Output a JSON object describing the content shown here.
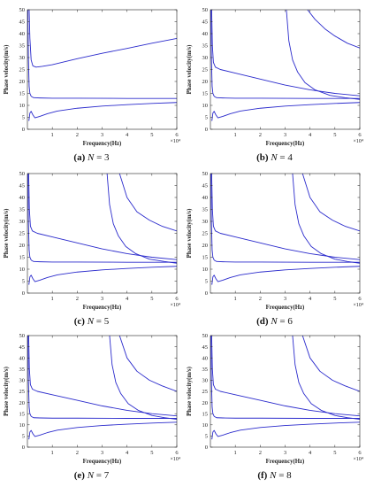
{
  "chart_data": [
    {
      "type": "line",
      "caption": {
        "letter": "(a)",
        "var": "N",
        "eq": " = 3"
      },
      "xlabel": "Frequency(Hz)",
      "ylabel": "Phase velocity(m/s)",
      "xexponent": "×10⁴",
      "xlim": [
        0,
        6
      ],
      "ylim": [
        0,
        50
      ],
      "xticks": [
        "1",
        "2",
        "3",
        "4",
        "5",
        "6"
      ],
      "yticks": [
        "0",
        "5",
        "10",
        "15",
        "20",
        "25",
        "30",
        "35",
        "40",
        "45",
        "50"
      ],
      "color": "#2b2bcc",
      "series": [
        {
          "x": [
            0.07,
            0.1,
            0.15,
            0.22,
            0.35,
            0.6,
            1.0,
            2.0,
            3.0,
            4.0,
            5.0,
            6.0
          ],
          "y": [
            50,
            38,
            29,
            26.5,
            26,
            26.3,
            27,
            29.5,
            31.8,
            33.8,
            36,
            38
          ]
        },
        {
          "x": [
            0.02,
            0.04,
            0.07,
            0.1,
            0.15,
            0.25,
            0.5,
            1.0,
            2.0,
            4.0,
            6.0
          ],
          "y": [
            50,
            30,
            18,
            15,
            13.8,
            13.2,
            13.1,
            13,
            13,
            12.9,
            12.9
          ]
        },
        {
          "x": [
            0.06,
            0.1,
            0.15,
            0.22,
            0.3,
            0.5,
            0.8,
            1.2,
            2.0,
            3.0,
            4.0,
            5.0,
            6.0
          ],
          "y": [
            3.5,
            6.8,
            7.5,
            6.0,
            4.8,
            5.4,
            6.5,
            7.6,
            8.8,
            9.7,
            10.3,
            10.8,
            11.2
          ]
        }
      ]
    },
    {
      "type": "line",
      "caption": {
        "letter": "(b)",
        "var": "N",
        "eq": " = 4"
      },
      "xlabel": "Frequency(Hz)",
      "ylabel": "Phase velocity(m/s)",
      "xexponent": "×10⁴",
      "xlim": [
        0,
        6
      ],
      "ylim": [
        0,
        50
      ],
      "xticks": [
        "1",
        "2",
        "3",
        "4",
        "5",
        "6"
      ],
      "yticks": [
        "0",
        "5",
        "10",
        "15",
        "20",
        "25",
        "30",
        "35",
        "40",
        "45",
        "50"
      ],
      "color": "#2b2bcc",
      "series": [
        {
          "x": [
            0.05,
            0.08,
            0.12,
            0.2,
            0.4,
            1.0,
            2.0,
            3.0,
            4.0,
            5.0,
            6.0
          ],
          "y": [
            50,
            35,
            28,
            26,
            25,
            23.5,
            21,
            18.5,
            16.5,
            15,
            14
          ]
        },
        {
          "x": [
            0.02,
            0.04,
            0.07,
            0.1,
            0.15,
            0.25,
            0.5,
            1.0,
            2.0,
            4.0,
            6.0
          ],
          "y": [
            50,
            30,
            18,
            15,
            13.8,
            13.2,
            13.1,
            13,
            13,
            12.9,
            12.9
          ]
        },
        {
          "x": [
            0.06,
            0.1,
            0.15,
            0.22,
            0.3,
            0.5,
            0.8,
            1.2,
            2.0,
            3.0,
            4.0,
            5.0,
            6.0
          ],
          "y": [
            3.5,
            6.8,
            7.5,
            6.0,
            4.8,
            5.4,
            6.5,
            7.6,
            8.8,
            9.7,
            10.3,
            10.8,
            11.2
          ]
        },
        {
          "x": [
            3.05,
            3.15,
            3.3,
            3.5,
            3.8,
            4.2,
            4.8,
            5.4,
            6.0
          ],
          "y": [
            50,
            37,
            29,
            24,
            19.5,
            16.5,
            14.2,
            13.2,
            12.5
          ]
        },
        {
          "x": [
            3.9,
            4.2,
            4.6,
            5.0,
            5.5,
            6.0
          ],
          "y": [
            50,
            46,
            42,
            39,
            36,
            34
          ]
        }
      ]
    },
    {
      "type": "line",
      "caption": {
        "letter": "(c)",
        "var": "N",
        "eq": " = 5"
      },
      "xlabel": "Frequency(Hz)",
      "ylabel": "Phase velocity(m/s)",
      "xexponent": "×10⁴",
      "xlim": [
        0,
        6
      ],
      "ylim": [
        0,
        50
      ],
      "xticks": [
        "1",
        "2",
        "3",
        "4",
        "5",
        "6"
      ],
      "yticks": [
        "0",
        "5",
        "10",
        "15",
        "20",
        "25",
        "30",
        "35",
        "40",
        "45",
        "50"
      ],
      "color": "#2b2bcc",
      "series": [
        {
          "x": [
            0.05,
            0.08,
            0.12,
            0.2,
            0.4,
            1.0,
            2.0,
            3.0,
            4.0,
            5.0,
            6.0
          ],
          "y": [
            50,
            35,
            28,
            26,
            25,
            23.5,
            21,
            18.5,
            16.5,
            15,
            14
          ]
        },
        {
          "x": [
            0.02,
            0.04,
            0.07,
            0.1,
            0.15,
            0.25,
            0.5,
            1.0,
            2.0,
            4.0,
            6.0
          ],
          "y": [
            50,
            30,
            18,
            15,
            13.8,
            13.2,
            13.1,
            13,
            13,
            12.9,
            12.9
          ]
        },
        {
          "x": [
            0.06,
            0.1,
            0.15,
            0.22,
            0.3,
            0.5,
            0.8,
            1.2,
            2.0,
            3.0,
            4.0,
            5.0,
            6.0
          ],
          "y": [
            3.5,
            6.8,
            7.5,
            6.0,
            4.8,
            5.4,
            6.5,
            7.6,
            8.8,
            9.7,
            10.3,
            10.8,
            11.2
          ]
        },
        {
          "x": [
            3.2,
            3.3,
            3.45,
            3.65,
            3.95,
            4.35,
            4.9,
            5.5,
            6.0
          ],
          "y": [
            50,
            37,
            29,
            24,
            19.5,
            16.5,
            14.2,
            13.2,
            12.5
          ]
        },
        {
          "x": [
            3.7,
            4.0,
            4.4,
            4.9,
            5.4,
            6.0
          ],
          "y": [
            50,
            40,
            34,
            30.5,
            28,
            26
          ]
        }
      ]
    },
    {
      "type": "line",
      "caption": {
        "letter": "(d)",
        "var": "N",
        "eq": " = 6"
      },
      "xlabel": "Frequency(Hz)",
      "ylabel": "Phase velocity(m/s)",
      "xexponent": "×10⁴",
      "xlim": [
        0,
        6
      ],
      "ylim": [
        0,
        50
      ],
      "xticks": [
        "1",
        "2",
        "3",
        "4",
        "5",
        "6"
      ],
      "yticks": [
        "0",
        "5",
        "10",
        "15",
        "20",
        "25",
        "30",
        "35",
        "40",
        "45",
        "50"
      ],
      "color": "#2b2bcc",
      "series": [
        {
          "x": [
            0.05,
            0.08,
            0.12,
            0.2,
            0.4,
            1.0,
            2.0,
            3.0,
            4.0,
            5.0,
            6.0
          ],
          "y": [
            50,
            35,
            28,
            26,
            25,
            23.5,
            21,
            18.5,
            16.5,
            15,
            14
          ]
        },
        {
          "x": [
            0.02,
            0.04,
            0.07,
            0.1,
            0.15,
            0.25,
            0.5,
            1.0,
            2.0,
            4.0,
            6.0
          ],
          "y": [
            50,
            30,
            18,
            15,
            13.8,
            13.2,
            13.1,
            13,
            13,
            12.9,
            12.9
          ]
        },
        {
          "x": [
            0.06,
            0.1,
            0.15,
            0.22,
            0.3,
            0.5,
            0.8,
            1.2,
            2.0,
            3.0,
            4.0,
            5.0,
            6.0
          ],
          "y": [
            3.5,
            6.8,
            7.5,
            6.0,
            4.8,
            5.4,
            6.5,
            7.6,
            8.8,
            9.7,
            10.3,
            10.8,
            11.2
          ]
        },
        {
          "x": [
            3.3,
            3.4,
            3.55,
            3.75,
            4.05,
            4.45,
            5.0,
            5.5,
            6.0
          ],
          "y": [
            50,
            37,
            29,
            24,
            19.5,
            16.5,
            14.2,
            13.2,
            12.5
          ]
        },
        {
          "x": [
            3.7,
            4.0,
            4.4,
            4.9,
            5.4,
            6.0
          ],
          "y": [
            50,
            40,
            34,
            30.5,
            28,
            26
          ]
        }
      ]
    },
    {
      "type": "line",
      "caption": {
        "letter": "(e)",
        "var": "N",
        "eq": " = 7"
      },
      "xlabel": "Frequency(Hz)",
      "ylabel": "Phase velocity(m/s)",
      "xexponent": "×10⁴",
      "xlim": [
        0,
        6
      ],
      "ylim": [
        0,
        50
      ],
      "xticks": [
        "1",
        "2",
        "3",
        "4",
        "5",
        "6"
      ],
      "yticks": [
        "0",
        "5",
        "10",
        "15",
        "20",
        "25",
        "30",
        "35",
        "40",
        "45",
        "50"
      ],
      "color": "#2b2bcc",
      "series": [
        {
          "x": [
            0.05,
            0.08,
            0.12,
            0.2,
            0.4,
            1.0,
            2.0,
            3.0,
            4.0,
            5.0,
            6.0
          ],
          "y": [
            50,
            35,
            28,
            26,
            25,
            23.5,
            21,
            18.5,
            16.5,
            15,
            14
          ]
        },
        {
          "x": [
            0.02,
            0.04,
            0.07,
            0.1,
            0.15,
            0.25,
            0.5,
            1.0,
            2.0,
            4.0,
            6.0
          ],
          "y": [
            50,
            30,
            18,
            15,
            13.8,
            13.2,
            13.1,
            13,
            13,
            12.9,
            12.9
          ]
        },
        {
          "x": [
            0.06,
            0.1,
            0.15,
            0.22,
            0.3,
            0.5,
            0.8,
            1.2,
            2.0,
            3.0,
            4.0,
            5.0,
            6.0
          ],
          "y": [
            3.5,
            6.8,
            7.5,
            6.0,
            4.8,
            5.4,
            6.5,
            7.6,
            8.8,
            9.7,
            10.3,
            10.8,
            11.2
          ]
        },
        {
          "x": [
            3.3,
            3.4,
            3.55,
            3.75,
            4.05,
            4.45,
            5.0,
            5.5,
            6.0
          ],
          "y": [
            50,
            37,
            29,
            24,
            19.5,
            16.5,
            14.2,
            13.2,
            12.5
          ]
        },
        {
          "x": [
            3.7,
            4.0,
            4.4,
            4.9,
            5.4,
            6.0
          ],
          "y": [
            50,
            40,
            34,
            30,
            27.5,
            25
          ]
        }
      ]
    },
    {
      "type": "line",
      "caption": {
        "letter": "(f)",
        "var": "N",
        "eq": " = 8"
      },
      "xlabel": "Frequency(Hz)",
      "ylabel": "Phase velocity(m/s)",
      "xexponent": "×10⁴",
      "xlim": [
        0,
        6
      ],
      "ylim": [
        0,
        50
      ],
      "xticks": [
        "1",
        "2",
        "3",
        "4",
        "5",
        "6"
      ],
      "yticks": [
        "0",
        "5",
        "10",
        "15",
        "20",
        "25",
        "30",
        "35",
        "40",
        "45",
        "50"
      ],
      "color": "#2b2bcc",
      "series": [
        {
          "x": [
            0.05,
            0.08,
            0.12,
            0.2,
            0.4,
            1.0,
            2.0,
            3.0,
            4.0,
            5.0,
            6.0
          ],
          "y": [
            50,
            35,
            28,
            26,
            25,
            23.5,
            21,
            18.5,
            16.5,
            15,
            14
          ]
        },
        {
          "x": [
            0.02,
            0.04,
            0.07,
            0.1,
            0.15,
            0.25,
            0.5,
            1.0,
            2.0,
            4.0,
            6.0
          ],
          "y": [
            50,
            30,
            18,
            15,
            13.8,
            13.2,
            13.1,
            13,
            13,
            12.9,
            12.9
          ]
        },
        {
          "x": [
            0.06,
            0.1,
            0.15,
            0.22,
            0.3,
            0.5,
            0.8,
            1.2,
            2.0,
            3.0,
            4.0,
            5.0,
            6.0
          ],
          "y": [
            3.5,
            6.8,
            7.5,
            6.0,
            4.8,
            5.4,
            6.5,
            7.6,
            8.8,
            9.7,
            10.3,
            10.8,
            11.2
          ]
        },
        {
          "x": [
            3.3,
            3.4,
            3.55,
            3.75,
            4.05,
            4.45,
            5.0,
            5.5,
            6.0
          ],
          "y": [
            50,
            37,
            29,
            24,
            19.5,
            16.5,
            14.2,
            13.2,
            12.5
          ]
        },
        {
          "x": [
            3.7,
            4.0,
            4.4,
            4.9,
            5.4,
            6.0
          ],
          "y": [
            50,
            40,
            34,
            30,
            27.5,
            25
          ]
        }
      ]
    }
  ]
}
